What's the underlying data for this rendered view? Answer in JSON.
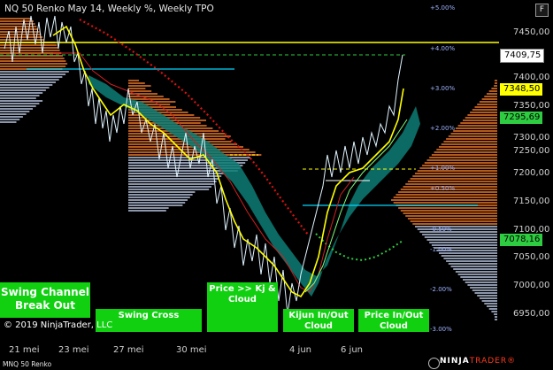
{
  "header": {
    "title": "NQ 50 Renko May 14, Weekly %, Weekly TPO",
    "f_label": "F"
  },
  "price_axis": {
    "labels": [
      "7450,00",
      "7400,00",
      "7350,00",
      "7300,00",
      "7250,00",
      "7200,00",
      "7150,00",
      "7100,00",
      "7050,00",
      "7000,00",
      "6950,00"
    ],
    "tags": {
      "last": "7409,75",
      "yellow": "7348,50",
      "green1": "7295,69",
      "green2": "7078,16"
    }
  },
  "pct_labels": [
    "+5.00%",
    "+4.00%",
    "+3.00%",
    "+2.00%",
    "+1.00%",
    "+0.50%",
    "-0.50%",
    "-1.00%",
    "-2.00%",
    "-3.00%"
  ],
  "time_axis": [
    "21 mei",
    "23 mei",
    "27 mei",
    "30 mei",
    "4 jun",
    "6 jun"
  ],
  "signals": {
    "swing_channel": "Swing Channel Break Out",
    "swing_cross": "Swing Cross",
    "price_kj": "Price >> Kj & Cloud",
    "kijun": "Kijun In/Out Cloud",
    "price_inout": "Price In/Out Cloud"
  },
  "copyright": "© 2019 NinjaTrader, LLC",
  "footer": {
    "instrument": "MNQ 50 Renko",
    "logo_a": "NINJA",
    "logo_b": "TRADER",
    "logo_mark": "®"
  },
  "colors": {
    "yellow": "#ffff00",
    "cyan": "#00d8ff",
    "green": "#10d010",
    "red_dots": "#e01010",
    "teal_cloud": "#0d7d74",
    "tpo_brown": "#b35a1f",
    "tpo_gray": "#8c96aa"
  }
}
